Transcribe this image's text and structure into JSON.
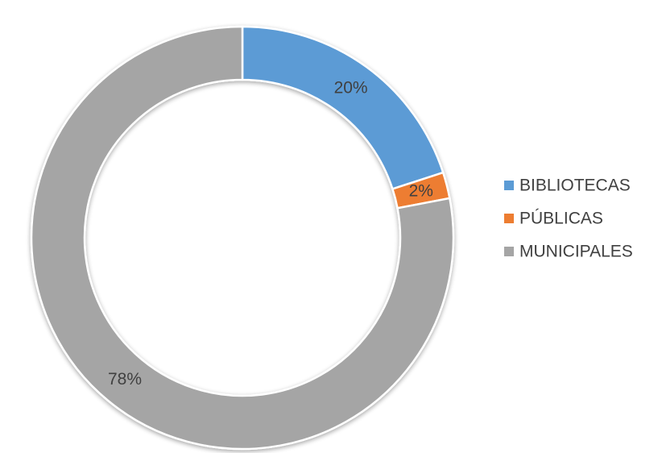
{
  "chart_data": {
    "type": "donut",
    "categories": [
      "BIBLIOTECAS",
      "PÚBLICAS",
      "MUNICIPALES"
    ],
    "values": [
      20,
      2,
      78
    ],
    "value_labels": [
      "20%",
      "2%",
      "78%"
    ],
    "colors": [
      "#5b9bd5",
      "#ed7d31",
      "#a5a5a5"
    ],
    "legend": "right"
  }
}
